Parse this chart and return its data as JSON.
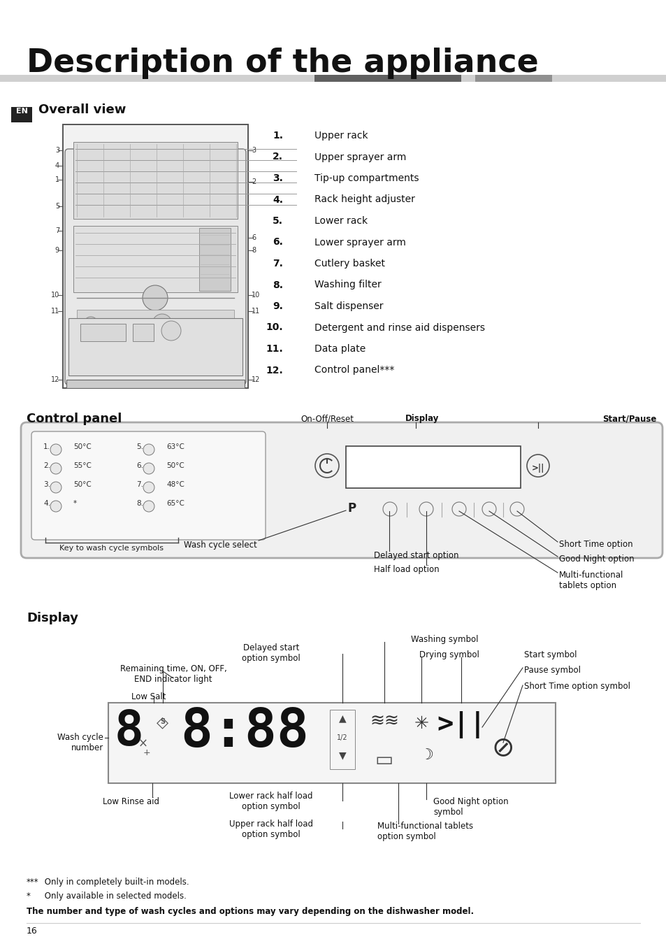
{
  "title": "Description of the appliance",
  "bg_color": "#ffffff",
  "page_number": "16",
  "en_label": "EN",
  "section1_title": "Overall view",
  "section2_title": "Control panel",
  "section3_title": "Display",
  "numbered_items": [
    [
      "1.",
      "Upper rack"
    ],
    [
      "2.",
      "Upper sprayer arm"
    ],
    [
      "3.",
      "Tip-up compartments"
    ],
    [
      "4.",
      "Rack height adjuster"
    ],
    [
      "5.",
      "Lower rack"
    ],
    [
      "6.",
      "Lower sprayer arm"
    ],
    [
      "7.",
      "Cutlery basket"
    ],
    [
      "8.",
      "Washing filter"
    ],
    [
      "9.",
      "Salt dispenser"
    ],
    [
      "10.",
      "Detergent and rinse aid dispensers"
    ],
    [
      "11.",
      "Data plate"
    ],
    [
      "12.",
      "Control panel***"
    ]
  ],
  "cycle_data": [
    [
      "1.",
      "50°C",
      "5.",
      "63°C"
    ],
    [
      "2.",
      "55°C",
      "6.",
      "50°C"
    ],
    [
      "3.",
      "50°C",
      "7.",
      "48°C"
    ],
    [
      "4.",
      "*",
      "8.",
      "65°C"
    ]
  ],
  "footer_notes": [
    [
      "***",
      " Only in completely built-in models."
    ],
    [
      "*",
      " Only available in selected models."
    ],
    [
      "bold",
      "The number and type of wash cycles and options may vary depending on the dishwasher model."
    ]
  ]
}
